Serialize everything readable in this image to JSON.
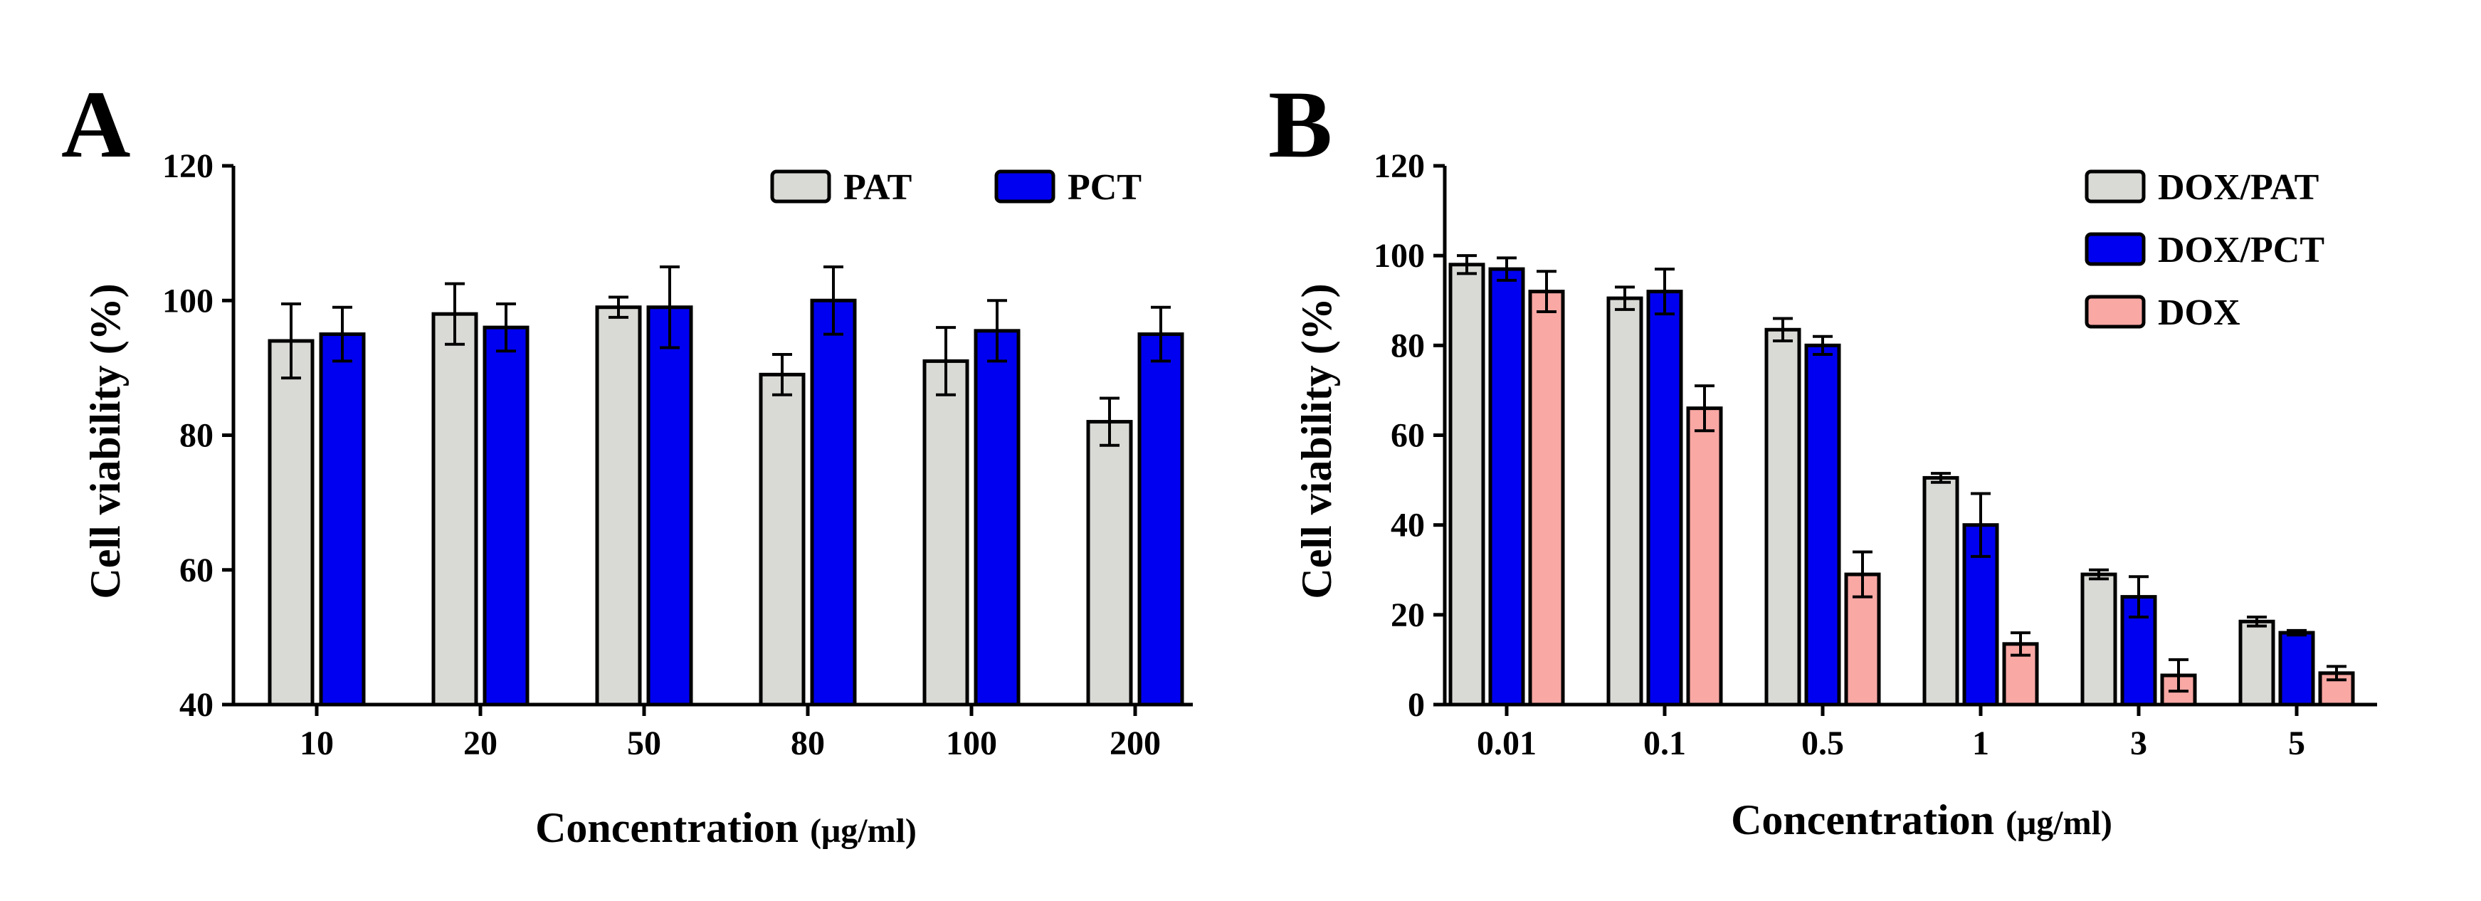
{
  "chart_data": [
    {
      "type": "bar",
      "panel_label": "A",
      "title": "",
      "xlabel": "Concentration",
      "xlabel_unit": "(μg/ml)",
      "ylabel": "Cell viability (%)",
      "ylim": [
        40,
        120
      ],
      "yticks": [
        40,
        60,
        80,
        100,
        120
      ],
      "categories": [
        "10",
        "20",
        "50",
        "80",
        "100",
        "200"
      ],
      "series": [
        {
          "name": "PAT",
          "color": "#d9d9d6",
          "values": [
            94,
            98,
            99,
            89,
            91,
            82
          ],
          "errors": [
            5.5,
            4.5,
            1.5,
            3,
            5,
            3.5
          ]
        },
        {
          "name": "PCT",
          "color": "#0000f0",
          "values": [
            95,
            96,
            99,
            100,
            95.5,
            95
          ],
          "errors": [
            4,
            3.5,
            6,
            5,
            4.5,
            4
          ]
        }
      ],
      "legend_position": "top-right",
      "grid": false
    },
    {
      "type": "bar",
      "panel_label": "B",
      "title": "",
      "xlabel": "Concentration",
      "xlabel_unit": "(μg/ml)",
      "ylabel": "Cell viability (%)",
      "ylim": [
        0,
        120
      ],
      "yticks": [
        0,
        20,
        40,
        60,
        80,
        100,
        120
      ],
      "categories": [
        "0.01",
        "0.1",
        "0.5",
        "1",
        "3",
        "5"
      ],
      "series": [
        {
          "name": "DOX/PAT",
          "color": "#d9d9d6",
          "values": [
            98,
            90.5,
            83.5,
            50.5,
            29,
            18.5
          ],
          "errors": [
            2,
            2.5,
            2.5,
            1,
            1,
            1
          ]
        },
        {
          "name": "DOX/PCT",
          "color": "#0000f0",
          "values": [
            97,
            92,
            80,
            40,
            24,
            16
          ],
          "errors": [
            2.5,
            5,
            2,
            7,
            4.5,
            0.5
          ]
        },
        {
          "name": "DOX",
          "color": "#f9a8a4",
          "values": [
            92,
            66,
            29,
            13.5,
            6.5,
            7
          ],
          "errors": [
            4.5,
            5,
            5,
            2.5,
            3.5,
            1.5
          ]
        }
      ],
      "legend_position": "top-right",
      "grid": false
    }
  ]
}
